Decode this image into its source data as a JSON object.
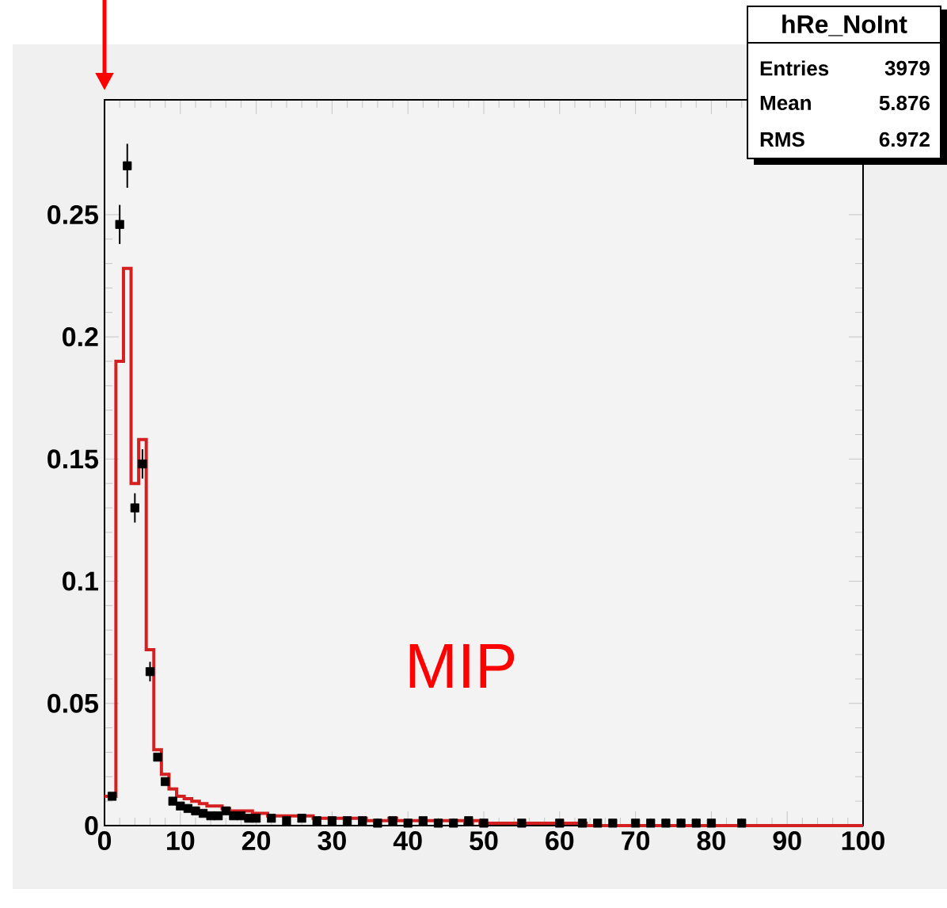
{
  "chart_data": {
    "type": "histogram",
    "xlim": [
      0,
      100
    ],
    "ylim": [
      0,
      0.297
    ],
    "xticks": [
      0,
      10,
      20,
      30,
      40,
      50,
      60,
      70,
      80,
      90,
      100
    ],
    "yticks": [
      0,
      0.05,
      0.1,
      0.15,
      0.2,
      0.25
    ],
    "series": [
      {
        "type": "histogram",
        "color": "#d42020",
        "bins": [
          0,
          1.5,
          2.5,
          3.5,
          4.5,
          5.5,
          6.5,
          7.5,
          8.5,
          9.5,
          10.5,
          11.5,
          12.5,
          13.5,
          14.5,
          15.5,
          16.5,
          17.5,
          18.5,
          19.5,
          20.5,
          21.5,
          22.5,
          23.5,
          24.5,
          25.5,
          26.5,
          27.5,
          28.5,
          29.5,
          30.5,
          31.5,
          32.5,
          33.5,
          34.5,
          35.5,
          36.5,
          37.5,
          38.5,
          39.5,
          40.5,
          41.5,
          42.5,
          43.5,
          44.5,
          45.5,
          46.5,
          47.5,
          48.5,
          49.5,
          50.5,
          51.5,
          52.5,
          53.5,
          54.5,
          55.5,
          56.5,
          57.5,
          58.5,
          59.5,
          60.5,
          61.5,
          62.5,
          63.5,
          64.5,
          65.5,
          66.5,
          67.5,
          68.5,
          69.5,
          70.5,
          71.5,
          72.5,
          73.5,
          74.5,
          75.5,
          76.5,
          77.5,
          78.5,
          79.5,
          80.5,
          81.5,
          82.5,
          83.5,
          84.5,
          85.5,
          86.5,
          87.5,
          88.5,
          89.5,
          90.5,
          91.5,
          92.5,
          93.5,
          94.5,
          95.5,
          96.5,
          97.5,
          98.5,
          99.5,
          100
        ],
        "values": [
          0.012,
          0.19,
          0.228,
          0.14,
          0.158,
          0.072,
          0.031,
          0.021,
          0.015,
          0.012,
          0.011,
          0.01,
          0.009,
          0.008,
          0.008,
          0.007,
          0.006,
          0.006,
          0.006,
          0.005,
          0.005,
          0.004,
          0.004,
          0.004,
          0.004,
          0.004,
          0.004,
          0.003,
          0.003,
          0.003,
          0.003,
          0.003,
          0.003,
          0.003,
          0.002,
          0.002,
          0.002,
          0.003,
          0.002,
          0.002,
          0.002,
          0.002,
          0.002,
          0.002,
          0.002,
          0.002,
          0.002,
          0.001,
          0.002,
          0.001,
          0.001,
          0.001,
          0.001,
          0.001,
          0.001,
          0.001,
          0.001,
          0.001,
          0.001,
          0.001,
          0.001,
          0.001,
          0.001,
          0,
          0,
          0,
          0,
          0,
          0,
          0,
          0,
          0,
          0,
          0,
          0,
          0,
          0,
          0,
          0,
          0,
          0,
          0,
          0,
          0,
          0,
          0,
          0,
          0,
          0,
          0,
          0,
          0,
          0,
          0,
          0,
          0,
          0,
          0,
          0,
          0
        ]
      },
      {
        "type": "scatter",
        "color": "#000000",
        "marker": "square",
        "x": [
          1,
          2,
          3,
          4,
          5,
          6,
          7,
          8,
          9,
          10,
          11,
          12,
          13,
          14,
          15,
          16,
          17,
          18,
          19,
          20,
          22,
          24,
          26,
          28,
          30,
          32,
          34,
          36,
          38,
          40,
          42,
          44,
          46,
          48,
          50,
          55,
          60,
          63,
          65,
          67,
          70,
          72,
          74,
          76,
          78,
          80,
          84
        ],
        "values": [
          0.012,
          0.246,
          0.27,
          0.13,
          0.148,
          0.063,
          0.028,
          0.018,
          0.01,
          0.008,
          0.007,
          0.006,
          0.005,
          0.004,
          0.004,
          0.006,
          0.004,
          0.004,
          0.003,
          0.003,
          0.003,
          0.002,
          0.003,
          0.002,
          0.002,
          0.002,
          0.002,
          0.001,
          0.002,
          0.001,
          0.002,
          0.001,
          0.001,
          0.002,
          0.001,
          0.001,
          0.001,
          0.001,
          0.001,
          0.001,
          0.001,
          0.001,
          0.001,
          0.001,
          0.001,
          0.001,
          0.001
        ],
        "errors": [
          null,
          0.008,
          0.009,
          0.006,
          0.006,
          0.004,
          null,
          null,
          null,
          null,
          null,
          null,
          null,
          null,
          null,
          null,
          null,
          null,
          null,
          null,
          null,
          null,
          null,
          null,
          null,
          null,
          null,
          null,
          null,
          null,
          null,
          null,
          null,
          null,
          null,
          null,
          null,
          null,
          null,
          null,
          null,
          null,
          null,
          null,
          null,
          null,
          null
        ]
      }
    ],
    "annotations": [
      "hRe_NoInt",
      "Entries",
      "3979",
      "Mean",
      "5.876",
      "RMS",
      "6.972",
      "MIP"
    ]
  }
}
